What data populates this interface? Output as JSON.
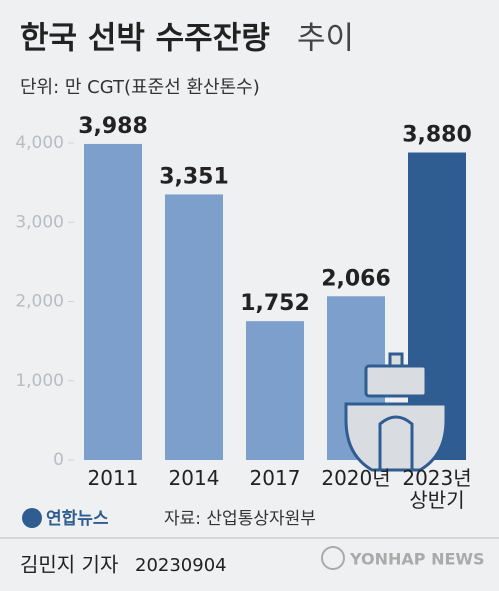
{
  "chart_data": {
    "type": "bar",
    "title": "한국 선박 수주잔량",
    "title_suffix": "추이",
    "subtitle": "단위: 만 CGT(표준선 환산톤수)",
    "categories": [
      "2011",
      "2014",
      "2017",
      "2020년",
      "2023년\n상반기"
    ],
    "values": [
      3988,
      3351,
      1752,
      2066,
      3880
    ],
    "value_labels": [
      "3,988",
      "3,351",
      "1,752",
      "2,066",
      "3,880"
    ],
    "colors": [
      "#7d9fcb",
      "#7d9fcb",
      "#7d9fcb",
      "#7d9fcb",
      "#2f5d92"
    ],
    "ylim": [
      0,
      4000
    ],
    "yticks": [
      0,
      {
        "value": 1000,
        "label": "1,000"
      },
      {
        "value": 2000,
        "label": "2,000"
      },
      {
        "value": 3000,
        "label": "3,000"
      },
      {
        "value": 4000,
        "label": "4,000"
      }
    ],
    "grid": false,
    "logo": "연합뉴스",
    "source": "자료: 산업통상자원부",
    "byline": "김민지 기자",
    "date": "20230904",
    "watermark": "YONHAP NEWS"
  }
}
